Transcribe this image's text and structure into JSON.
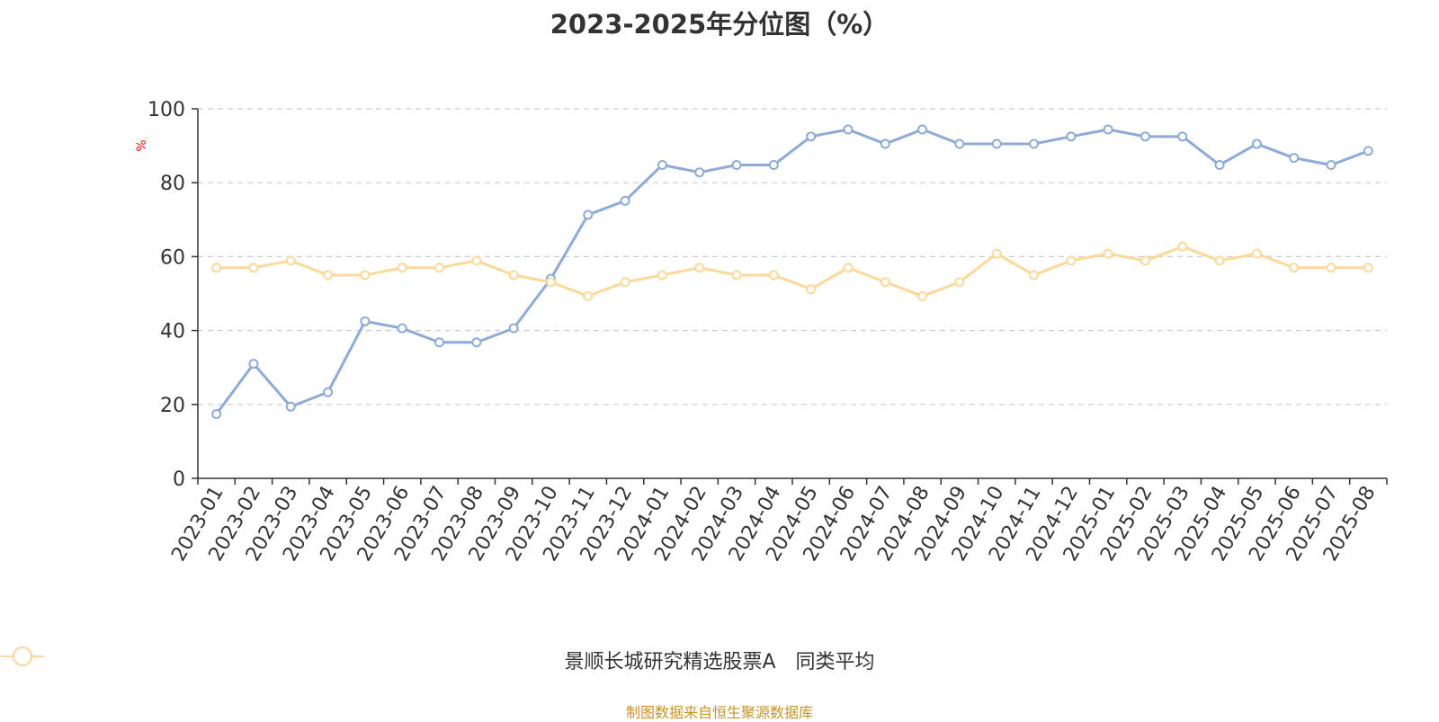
{
  "title": "2023-2025年分位图（%）",
  "source": "制图数据来自恒生聚源数据库",
  "chart_data": {
    "type": "line",
    "title": "2023-2025年分位图（%）",
    "ylabel": "%",
    "ylim": [
      0,
      100
    ],
    "yticks": [
      0,
      20,
      40,
      60,
      80,
      100
    ],
    "grid": true,
    "legend_position": "bottom",
    "categories": [
      "2023-01",
      "2023-02",
      "2023-03",
      "2023-04",
      "2023-05",
      "2023-06",
      "2023-07",
      "2023-08",
      "2023-09",
      "2023-10",
      "2023-11",
      "2023-12",
      "2024-01",
      "2024-02",
      "2024-03",
      "2024-04",
      "2024-05",
      "2024-06",
      "2024-07",
      "2024-08",
      "2024-09",
      "2024-10",
      "2024-11",
      "2024-12",
      "2025-01",
      "2025-02",
      "2025-03",
      "2025-04",
      "2025-05",
      "2025-06",
      "2025-07",
      "2025-08"
    ],
    "series": [
      {
        "name": "景顺长城研究精选股票A",
        "color": "#8eabd8",
        "values": [
          17.4,
          31.0,
          19.4,
          23.3,
          42.5,
          40.6,
          36.8,
          36.8,
          40.6,
          54.0,
          71.3,
          75.1,
          84.8,
          82.8,
          84.8,
          84.8,
          92.5,
          94.4,
          90.5,
          94.4,
          90.5,
          90.5,
          90.5,
          92.5,
          94.4,
          92.5,
          92.5,
          84.8,
          90.5,
          86.7,
          84.8,
          88.6
        ]
      },
      {
        "name": "同类平均",
        "color": "#fcd99a",
        "values": [
          57.0,
          57.0,
          58.9,
          55.0,
          55.0,
          57.0,
          57.0,
          58.9,
          55.0,
          53.1,
          49.3,
          53.1,
          55.0,
          57.0,
          55.0,
          55.0,
          51.2,
          57.0,
          53.1,
          49.3,
          53.1,
          60.8,
          55.0,
          58.9,
          60.8,
          58.9,
          62.7,
          58.9,
          60.8,
          57.0,
          57.0,
          57.0
        ]
      }
    ]
  }
}
